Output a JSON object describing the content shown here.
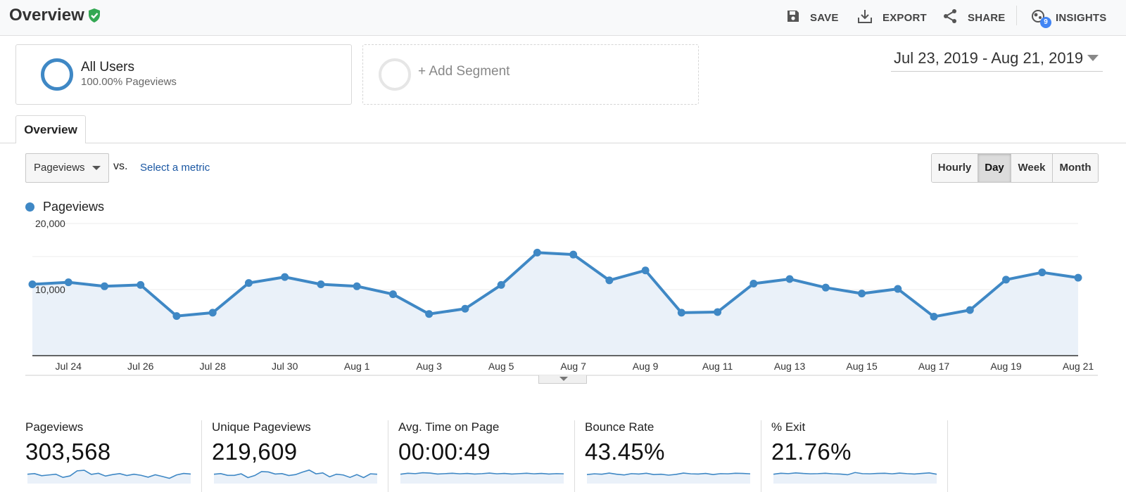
{
  "header": {
    "title": "Overview",
    "actions": {
      "save": "SAVE",
      "export": "EXPORT",
      "share": "SHARE",
      "insights": "INSIGHTS",
      "insights_count": "9"
    }
  },
  "segments": {
    "active": {
      "name": "All Users",
      "subtitle": "100.00% Pageviews"
    },
    "add_label": "+ Add Segment"
  },
  "date_range": "Jul 23, 2019 - Aug 21, 2019",
  "tabs": [
    "Overview"
  ],
  "controls": {
    "metric": "Pageviews",
    "vs": "vs.",
    "select_metric": "Select a metric",
    "granularity": [
      "Hourly",
      "Day",
      "Week",
      "Month"
    ],
    "active_granularity": "Day"
  },
  "legend": {
    "label": "Pageviews"
  },
  "chart_data": {
    "type": "area",
    "series": [
      {
        "name": "Pageviews",
        "values": [
          10800,
          11100,
          10500,
          10700,
          6000,
          6500,
          11000,
          11900,
          10800,
          10500,
          9300,
          6300,
          7100,
          10700,
          15600,
          15300,
          11400,
          12900,
          6500,
          6600,
          10900,
          11600,
          10300,
          9400,
          10100,
          5900,
          6900,
          11500,
          12600,
          11800
        ]
      }
    ],
    "x": [
      "Jul 23",
      "Jul 24",
      "Jul 25",
      "Jul 26",
      "Jul 27",
      "Jul 28",
      "Jul 29",
      "Jul 30",
      "Jul 31",
      "Aug 1",
      "Aug 2",
      "Aug 3",
      "Aug 4",
      "Aug 5",
      "Aug 6",
      "Aug 7",
      "Aug 8",
      "Aug 9",
      "Aug 10",
      "Aug 11",
      "Aug 12",
      "Aug 13",
      "Aug 14",
      "Aug 15",
      "Aug 16",
      "Aug 17",
      "Aug 18",
      "Aug 19",
      "Aug 20",
      "Aug 21"
    ],
    "x_tick_labels": [
      "Jul 24",
      "Jul 26",
      "Jul 28",
      "Jul 30",
      "Aug 1",
      "Aug 3",
      "Aug 5",
      "Aug 7",
      "Aug 9",
      "Aug 11",
      "Aug 13",
      "Aug 15",
      "Aug 17",
      "Aug 19",
      "Aug 21"
    ],
    "y_tick_labels": [
      "20,000",
      "10,000"
    ],
    "y_ticks": [
      20000,
      10000
    ],
    "ylim": [
      0,
      20000
    ],
    "colors": {
      "line": "#3f88c5",
      "fill": "#eaf1f9"
    }
  },
  "summary": [
    {
      "label": "Pageviews",
      "value": "303,568",
      "spark": [
        5,
        5.3,
        4.2,
        4.6,
        5,
        3.3,
        4.1,
        6.8,
        7.1,
        4.9,
        5.5,
        4,
        4.8,
        5.3,
        4.3,
        5,
        4.4,
        3.4,
        4.7,
        3.8,
        2.8,
        4.6,
        5.4,
        5.1
      ]
    },
    {
      "label": "Unique Pageviews",
      "value": "219,609",
      "spark": [
        5,
        5.3,
        4.4,
        4.4,
        5.2,
        3.2,
        4.3,
        6.4,
        6.2,
        5.1,
        5.3,
        4.3,
        4.8,
        6.1,
        7.2,
        5.2,
        5.7,
        3.6,
        5,
        4.6,
        3.3,
        4.8,
        3.2,
        5.2,
        5
      ]
    },
    {
      "label": "Avg. Time on Page",
      "value": "00:00:49",
      "spark": [
        5,
        5.5,
        5.3,
        5.8,
        5.6,
        5.1,
        5.3,
        5.5,
        5.2,
        5.4,
        5.1,
        5.3,
        5.6,
        5.2,
        5.4,
        5.1,
        5.3,
        5.5,
        5.2,
        5.4,
        5.1,
        5.3,
        5.2
      ]
    },
    {
      "label": "Bounce Rate",
      "value": "43.45%",
      "spark": [
        4.8,
        5.2,
        5,
        5.6,
        5,
        4.6,
        5.3,
        5.1,
        5.5,
        4.8,
        5,
        4.5,
        4.9,
        5.6,
        5.2,
        5.1,
        5.4,
        4.8,
        5.3,
        5.2,
        5.5,
        5.4,
        5.2
      ]
    },
    {
      "label": "% Exit",
      "value": "21.76%",
      "spark": [
        5,
        5.5,
        5.3,
        5.7,
        5.4,
        5.2,
        5.3,
        5.5,
        5.2,
        5.1,
        4.7,
        5.9,
        5.3,
        5.2,
        5.4,
        5.5,
        5.2,
        5.6,
        5.3,
        5.1,
        5.4,
        5.7,
        5
      ]
    }
  ]
}
